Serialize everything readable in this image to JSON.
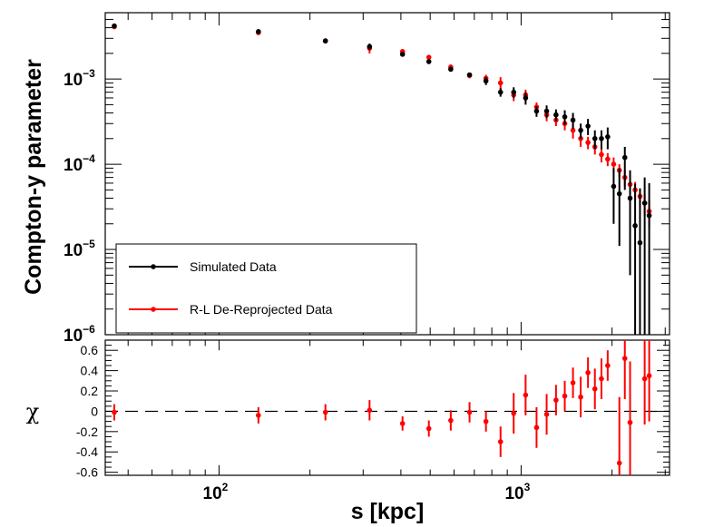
{
  "chart_data": [
    {
      "type": "scatter",
      "panel": "top",
      "xlabel": "s [kpc]",
      "ylabel": "Compton-y parameter",
      "xscale": "log",
      "yscale": "log",
      "xlim": [
        42,
        3100
      ],
      "ylim": [
        1e-06,
        0.006
      ],
      "y_ticks": [
        {
          "value": 1e-06,
          "base": "10",
          "exp": "−6"
        },
        {
          "value": 1e-05,
          "base": "10",
          "exp": "−5"
        },
        {
          "value": 0.0001,
          "base": "10",
          "exp": "−4"
        },
        {
          "value": 0.001,
          "base": "10",
          "exp": "−3"
        }
      ],
      "series": [
        {
          "name": "Simulated Data",
          "color": "#000000",
          "points": [
            {
              "x": 45,
              "y": 0.0042,
              "yerr": [
                0.0002,
                0.0002
              ]
            },
            {
              "x": 135,
              "y": 0.0036,
              "yerr": [
                0.0002,
                0.0002
              ]
            },
            {
              "x": 225,
              "y": 0.0028,
              "yerr": [
                0.0001,
                0.0001
              ]
            },
            {
              "x": 315,
              "y": 0.0024,
              "yerr": [
                0.0002,
                0.0002
              ]
            },
            {
              "x": 405,
              "y": 0.00195,
              "yerr": [
                0.0001,
                0.0001
              ]
            },
            {
              "x": 495,
              "y": 0.0016,
              "yerr": [
                0.0001,
                0.0001
              ]
            },
            {
              "x": 585,
              "y": 0.0013,
              "yerr": [
                8e-05,
                8e-05
              ]
            },
            {
              "x": 675,
              "y": 0.00112,
              "yerr": [
                7e-05,
                7e-05
              ]
            },
            {
              "x": 765,
              "y": 0.00095,
              "yerr": [
                0.0001,
                0.0001
              ]
            },
            {
              "x": 855,
              "y": 0.0007,
              "yerr": [
                8e-05,
                8e-05
              ]
            },
            {
              "x": 945,
              "y": 0.0007,
              "yerr": [
                0.0001,
                0.0001
              ]
            },
            {
              "x": 1035,
              "y": 0.0006,
              "yerr": [
                0.0001,
                0.0001
              ]
            },
            {
              "x": 1125,
              "y": 0.00042,
              "yerr": [
                6e-05,
                6e-05
              ]
            },
            {
              "x": 1215,
              "y": 0.00042,
              "yerr": [
                7e-05,
                7e-05
              ]
            },
            {
              "x": 1305,
              "y": 0.00038,
              "yerr": [
                6e-05,
                6e-05
              ]
            },
            {
              "x": 1395,
              "y": 0.00036,
              "yerr": [
                7e-05,
                7e-05
              ]
            },
            {
              "x": 1485,
              "y": 0.00033,
              "yerr": [
                7e-05,
                7e-05
              ]
            },
            {
              "x": 1575,
              "y": 0.00025,
              "yerr": [
                5e-05,
                5e-05
              ]
            },
            {
              "x": 1665,
              "y": 0.00028,
              "yerr": [
                6e-05,
                6e-05
              ]
            },
            {
              "x": 1755,
              "y": 0.0002,
              "yerr": [
                5e-05,
                5e-05
              ]
            },
            {
              "x": 1845,
              "y": 0.0002,
              "yerr": [
                5e-05,
                5e-05
              ]
            },
            {
              "x": 1935,
              "y": 0.00021,
              "yerr": [
                6e-05,
                6e-05
              ]
            },
            {
              "x": 2025,
              "y": 5.5e-05,
              "yerr": [
                3.5e-05,
                3.5e-05
              ]
            },
            {
              "x": 2115,
              "y": 4.5e-05,
              "yerr": [
                3.4e-05,
                4.5e-05
              ]
            },
            {
              "x": 2205,
              "y": 0.00012,
              "yerr": [
                7e-05,
                4e-05
              ]
            },
            {
              "x": 2295,
              "y": 4e-05,
              "yerr": [
                3.5e-05,
                4.5e-05
              ]
            },
            {
              "x": 2385,
              "y": 1.9e-05,
              "yerr": [
                1.85e-05,
                4e-05
              ]
            },
            {
              "x": 2475,
              "y": 1.2e-05,
              "yerr": [
                1.19e-05,
                4e-05
              ]
            },
            {
              "x": 2565,
              "y": 3.5e-05,
              "yerr": [
                3.45e-05,
                3.5e-05
              ]
            },
            {
              "x": 2655,
              "y": 2.5e-05,
              "yerr": [
                2.45e-05,
                3.5e-05
              ]
            }
          ]
        },
        {
          "name": "R-L De-Reprojected Data",
          "color": "#ff0000",
          "points": [
            {
              "x": 45,
              "y": 0.0041,
              "yerr": [
                0.0002,
                0.0002
              ]
            },
            {
              "x": 135,
              "y": 0.0035,
              "yerr": [
                0.0002,
                0.0002
              ]
            },
            {
              "x": 225,
              "y": 0.0028,
              "yerr": [
                0.0001,
                0.0001
              ]
            },
            {
              "x": 315,
              "y": 0.0023,
              "yerr": [
                0.0003,
                0.0003
              ]
            },
            {
              "x": 405,
              "y": 0.0021,
              "yerr": [
                0.00015,
                0.00015
              ]
            },
            {
              "x": 495,
              "y": 0.0018,
              "yerr": [
                0.0001,
                0.0001
              ]
            },
            {
              "x": 585,
              "y": 0.00138,
              "yerr": [
                0.0001,
                0.0001
              ]
            },
            {
              "x": 675,
              "y": 0.0011,
              "yerr": [
                8e-05,
                8e-05
              ]
            },
            {
              "x": 765,
              "y": 0.00102,
              "yerr": [
                0.0001,
                0.0001
              ]
            },
            {
              "x": 855,
              "y": 0.0009,
              "yerr": [
                0.00015,
                0.00015
              ]
            },
            {
              "x": 945,
              "y": 0.00065,
              "yerr": [
                0.0001,
                0.0001
              ]
            },
            {
              "x": 1035,
              "y": 0.00065,
              "yerr": [
                0.0001,
                0.0001
              ]
            },
            {
              "x": 1125,
              "y": 0.00047,
              "yerr": [
                6e-05,
                6e-05
              ]
            },
            {
              "x": 1215,
              "y": 0.00038,
              "yerr": [
                6e-05,
                6e-05
              ]
            },
            {
              "x": 1305,
              "y": 0.00033,
              "yerr": [
                5e-05,
                5e-05
              ]
            },
            {
              "x": 1395,
              "y": 0.0003,
              "yerr": [
                5e-05,
                5e-05
              ]
            },
            {
              "x": 1485,
              "y": 0.00025,
              "yerr": [
                5e-05,
                5e-05
              ]
            },
            {
              "x": 1575,
              "y": 0.0002,
              "yerr": [
                4e-05,
                4e-05
              ]
            },
            {
              "x": 1665,
              "y": 0.00018,
              "yerr": [
                3e-05,
                3e-05
              ]
            },
            {
              "x": 1755,
              "y": 0.00016,
              "yerr": [
                3e-05,
                3e-05
              ]
            },
            {
              "x": 1845,
              "y": 0.00013,
              "yerr": [
                2.5e-05,
                2.5e-05
              ]
            },
            {
              "x": 1935,
              "y": 0.000115,
              "yerr": [
                2e-05,
                2e-05
              ]
            },
            {
              "x": 2025,
              "y": 0.0001,
              "yerr": [
                2e-05,
                2e-05
              ]
            },
            {
              "x": 2115,
              "y": 8.5e-05,
              "yerr": [
                1.5e-05,
                1.5e-05
              ]
            },
            {
              "x": 2205,
              "y": 7e-05,
              "yerr": [
                1.5e-05,
                1.5e-05
              ]
            },
            {
              "x": 2295,
              "y": 5.8e-05,
              "yerr": [
                1.5e-05,
                1.5e-05
              ]
            },
            {
              "x": 2385,
              "y": 5e-05,
              "yerr": [
                1.2e-05,
                1.2e-05
              ]
            },
            {
              "x": 2475,
              "y": 4.2e-05,
              "yerr": [
                1e-05,
                1e-05
              ]
            },
            {
              "x": 2565,
              "y": 3.5e-05,
              "yerr": [
                1e-05,
                1e-05
              ]
            },
            {
              "x": 2655,
              "y": 2.8e-05,
              "yerr": [
                1e-05,
                1e-05
              ]
            }
          ]
        }
      ],
      "legend": {
        "placement": "bottom-left",
        "entries": [
          "Simulated Data",
          "R-L De-Reprojected Data"
        ]
      }
    },
    {
      "type": "scatter",
      "panel": "bottom",
      "xlabel": "s [kpc]",
      "ylabel": "χ",
      "xscale": "log",
      "xlim": [
        42,
        3100
      ],
      "ylim": [
        -0.63,
        0.7
      ],
      "y_ticks": [
        "-0.6",
        "-0.4",
        "-0.2",
        "0",
        "0.2",
        "0.4",
        "0.6"
      ],
      "x_ticks": [
        {
          "value": 100,
          "base": "10",
          "exp": "2"
        },
        {
          "value": 1000,
          "base": "10",
          "exp": "3"
        }
      ],
      "reference_line": {
        "y": 0,
        "style": "dashed"
      },
      "series": [
        {
          "name": "chi",
          "color": "#ff0000",
          "points": [
            {
              "x": 45,
              "y": -0.01,
              "yerr": 0.08
            },
            {
              "x": 135,
              "y": -0.04,
              "yerr": 0.08
            },
            {
              "x": 225,
              "y": -0.01,
              "yerr": 0.08
            },
            {
              "x": 315,
              "y": 0.01,
              "yerr": 0.1
            },
            {
              "x": 405,
              "y": -0.12,
              "yerr": 0.07
            },
            {
              "x": 495,
              "y": -0.17,
              "yerr": 0.08
            },
            {
              "x": 585,
              "y": -0.09,
              "yerr": 0.1
            },
            {
              "x": 675,
              "y": -0.01,
              "yerr": 0.1
            },
            {
              "x": 765,
              "y": -0.1,
              "yerr": 0.1
            },
            {
              "x": 855,
              "y": -0.3,
              "yerr": 0.15
            },
            {
              "x": 945,
              "y": -0.02,
              "yerr": 0.2
            },
            {
              "x": 1035,
              "y": 0.16,
              "yerr": 0.2
            },
            {
              "x": 1125,
              "y": -0.16,
              "yerr": 0.2
            },
            {
              "x": 1215,
              "y": -0.03,
              "yerr": 0.2
            },
            {
              "x": 1305,
              "y": 0.11,
              "yerr": 0.15
            },
            {
              "x": 1395,
              "y": 0.15,
              "yerr": 0.15
            },
            {
              "x": 1485,
              "y": 0.28,
              "yerr": 0.15
            },
            {
              "x": 1575,
              "y": 0.14,
              "yerr": 0.2
            },
            {
              "x": 1665,
              "y": 0.38,
              "yerr": 0.15
            },
            {
              "x": 1755,
              "y": 0.22,
              "yerr": 0.2
            },
            {
              "x": 1845,
              "y": 0.32,
              "yerr": 0.2
            },
            {
              "x": 1935,
              "y": 0.45,
              "yerr": 0.15
            },
            {
              "x": 2115,
              "y": -0.51,
              "yerr": 0.65
            },
            {
              "x": 2205,
              "y": 0.52,
              "yerr": 0.4
            },
            {
              "x": 2295,
              "y": -0.11,
              "yerr": 0.6
            },
            {
              "x": 2565,
              "y": 0.32,
              "yerr": 0.45
            },
            {
              "x": 2655,
              "y": 0.35,
              "yerr": 0.45
            }
          ]
        }
      ]
    }
  ]
}
